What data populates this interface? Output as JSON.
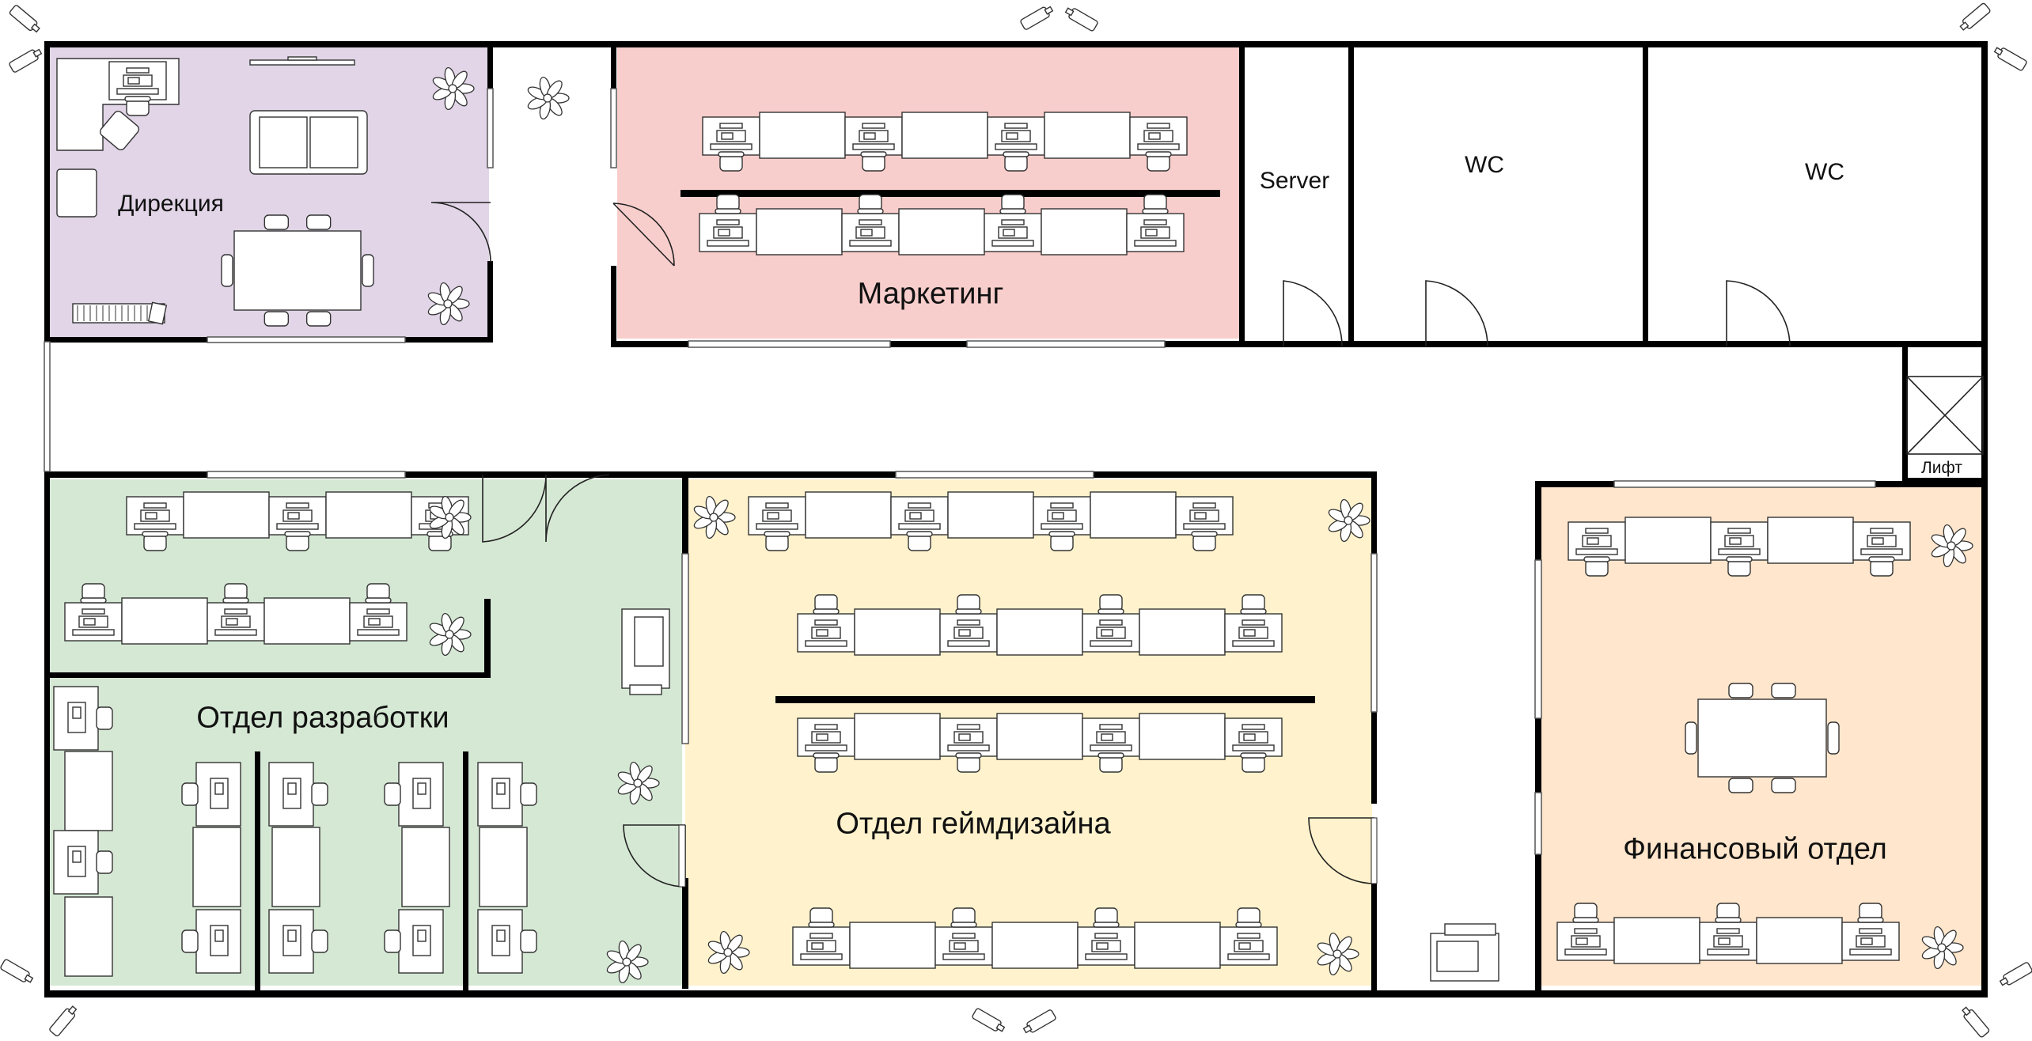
{
  "rooms": {
    "direction": {
      "label": "Дирекция",
      "fill": "#e1d5e7"
    },
    "marketing": {
      "label": "Маркетинг",
      "fill": "#f8cecc"
    },
    "server": {
      "label": "Server"
    },
    "wc1": {
      "label": "WC"
    },
    "wc2": {
      "label": "WC"
    },
    "elevator": {
      "label": "Лифт"
    },
    "development": {
      "label": "Отдел разработки",
      "fill": "#d5e8d4"
    },
    "gamedesign": {
      "label": "Отдел геймдизайна",
      "fill": "#fff2cc"
    },
    "finance": {
      "label": "Финансовый отдел",
      "fill": "#ffe6cc"
    }
  },
  "colors": {
    "wall": "#000000",
    "furniture": "#ffffff",
    "furniture_stroke": "#333333"
  }
}
